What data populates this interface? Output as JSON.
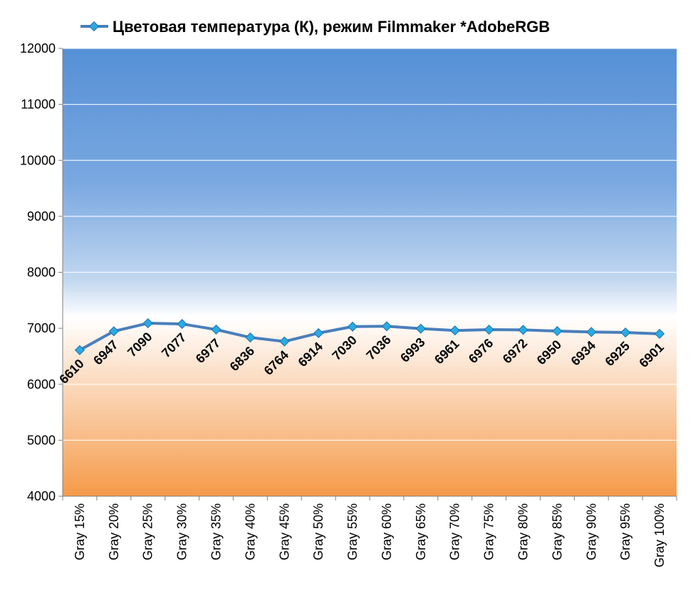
{
  "chart_data": {
    "type": "line",
    "title": "",
    "xlabel": "",
    "ylabel": "",
    "ylim": [
      4000,
      12000
    ],
    "yticks": [
      4000,
      5000,
      6000,
      7000,
      8000,
      9000,
      10000,
      11000,
      12000
    ],
    "grid": "horizontal",
    "legend_position": "top",
    "categories": [
      "Gray 15%",
      "Gray 20%",
      "Gray 25%",
      "Gray 30%",
      "Gray 35%",
      "Gray 40%",
      "Gray 45%",
      "Gray 50%",
      "Gray 55%",
      "Gray 60%",
      "Gray 65%",
      "Gray 70%",
      "Gray 75%",
      "Gray 80%",
      "Gray 85%",
      "Gray 90%",
      "Gray 95%",
      "Gray 100%"
    ],
    "series": [
      {
        "name": "Цветовая температура (К), режим Filmmaker *AdobeRGB",
        "values": [
          6610,
          6947,
          7090,
          7077,
          6977,
          6836,
          6764,
          6914,
          7030,
          7036,
          6993,
          6961,
          6976,
          6972,
          6950,
          6934,
          6925,
          6901
        ]
      }
    ],
    "colors": {
      "line": "#4a7ebb",
      "marker": "#29abe2",
      "top_background": "#5590d6",
      "bottom_background": "#f59a48"
    }
  }
}
